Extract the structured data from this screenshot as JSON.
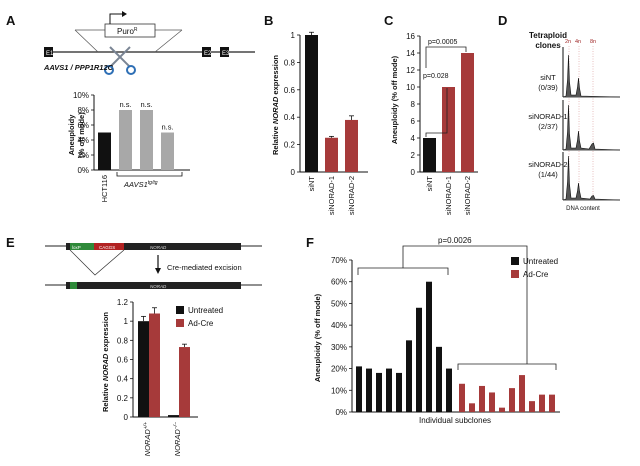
{
  "colors": {
    "black": "#111111",
    "red": "#a63a3a",
    "gray": "#a8a8a8"
  },
  "panelA": {
    "label": "A",
    "puro": "Puro",
    "puro_sup": "R",
    "exons": [
      "E1",
      "E2",
      "E3"
    ],
    "locus": "AAVS1 / PPP1R12C",
    "ylabel1": "Aneuploidy",
    "ylabel2": "(% off mode)",
    "cat_label": "HCT116",
    "group_label": "AAVS1",
    "group_sup": "tg/tg",
    "chart_data": {
      "type": "bar",
      "categories": [
        "HCT116",
        "AAVS1 tg/tg #1",
        "AAVS1 tg/tg #2",
        "AAVS1 tg/tg #3"
      ],
      "values": [
        5,
        8,
        8,
        5
      ],
      "annotations": [
        "",
        "n.s.",
        "n.s.",
        "n.s."
      ],
      "ylim": [
        0,
        10
      ],
      "ticks": [
        "0%",
        "2%",
        "4%",
        "6%",
        "8%",
        "10%"
      ],
      "ylabel": "Aneuploidy (% off mode)"
    }
  },
  "panelB": {
    "label": "B",
    "ylabel_pre": "Relative ",
    "ylabel_gene": "NORAD",
    "ylabel_post": " expression",
    "chart_data": {
      "type": "bar",
      "categories": [
        "siNT",
        "siNORAD-1",
        "siNORAD-2"
      ],
      "values": [
        1.0,
        0.25,
        0.38
      ],
      "errors": [
        0.02,
        0.01,
        0.03
      ],
      "ylim": [
        0,
        1
      ],
      "ticks": [
        "0",
        "0.2",
        "0.4",
        "0.6",
        "0.8",
        "1"
      ],
      "ylabel": "Relative NORAD expression"
    }
  },
  "panelC": {
    "label": "C",
    "ylabel": "Aneuploidy (% off mode)",
    "p1": "p=0.028",
    "p2": "p=0.0005",
    "chart_data": {
      "type": "bar",
      "categories": [
        "siNT",
        "siNORAD-1",
        "siNORAD-2"
      ],
      "values": [
        4,
        10,
        14
      ],
      "ylim": [
        0,
        16
      ],
      "ticks": [
        "0",
        "2",
        "4",
        "6",
        "8",
        "10",
        "12",
        "14",
        "16"
      ],
      "ylabel": "Aneuploidy (% off mode)"
    }
  },
  "panelD": {
    "label": "D",
    "title1": "Tetraploid",
    "title2": "clones",
    "peaks": [
      "2n",
      "4n",
      "8n"
    ],
    "rows": [
      {
        "name": "siNT",
        "count": "(0/39)"
      },
      {
        "name": "siNORAD-1",
        "count": "(2/37)"
      },
      {
        "name": "siNORAD-2",
        "count": "(1/44)"
      }
    ],
    "xlabel": "DNA content"
  },
  "panelE": {
    "label": "E",
    "box1": "loxP",
    "box2": "CAGGS",
    "gene": "NORAD",
    "action": "Cre-mediated excision",
    "ylabel_pre": "Relative ",
    "ylabel_gene": "NORAD",
    "ylabel_post": " expression",
    "genotype": "NORAD",
    "sup1": "+/+",
    "sup2": "−/−",
    "chart_data": {
      "type": "bar",
      "categories": [
        "NORAD +/+",
        "NORAD -/-"
      ],
      "series": [
        {
          "name": "Untreated",
          "values": [
            1.0,
            0.02
          ],
          "errors": [
            0.05,
            0.0
          ]
        },
        {
          "name": "Ad-Cre",
          "values": [
            1.08,
            0.73
          ],
          "errors": [
            0.06,
            0.03
          ]
        }
      ],
      "ylim": [
        0,
        1.2
      ],
      "ticks": [
        "0",
        "0.2",
        "0.4",
        "0.6",
        "0.8",
        "1",
        "1.2"
      ],
      "legend": [
        "Untreated",
        "Ad-Cre"
      ],
      "ylabel": "Relative NORAD expression"
    }
  },
  "panelF": {
    "label": "F",
    "pvalue": "p=0.0026",
    "ylabel": "Aneuploidy (% off mode)",
    "xlabel": "Individual subclones",
    "chart_data": {
      "type": "bar",
      "series": [
        {
          "name": "Untreated",
          "values": [
            21,
            20,
            18,
            20,
            18,
            33,
            48,
            60,
            30,
            20
          ]
        },
        {
          "name": "Ad-Cre",
          "values": [
            13,
            4,
            12,
            9,
            2,
            11,
            17,
            5,
            8,
            8
          ]
        }
      ],
      "ylim": [
        0,
        70
      ],
      "ticks": [
        "0%",
        "10%",
        "20%",
        "30%",
        "40%",
        "50%",
        "60%",
        "70%"
      ],
      "legend": [
        "Untreated",
        "Ad-Cre"
      ],
      "ylabel": "Aneuploidy (% off mode)",
      "xlabel": "Individual subclones"
    }
  }
}
